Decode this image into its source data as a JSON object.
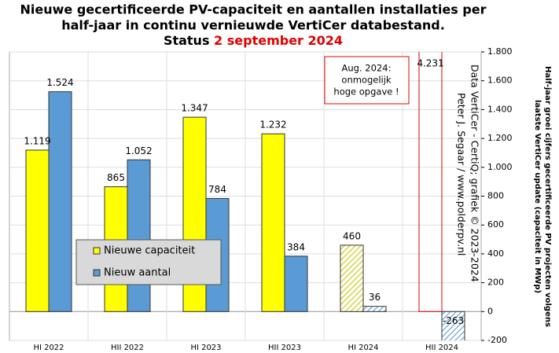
{
  "chart_data": {
    "type": "bar",
    "title": [
      "Nieuwe gecertificeerde PV-capaciteit en aantallen installaties per",
      "half-jaar in continu vernieuwde VertiCer databestand."
    ],
    "subtitle": {
      "prefix": "Status",
      "date": "2 september 2024",
      "date_color": "#e00000"
    },
    "y_axis_label": [
      "Half-jaar groei cijfers gecertificeerde PV projecten volgens",
      "laatste VertiCer update (capaciteit in MWp)"
    ],
    "credits": [
      "Data VertiCer - CertiQ; grafiek © 2023-2024",
      "Peter J. Segaar / www.polderpv.nl"
    ],
    "annotation": [
      "Aug. 2024:",
      "onmogelijk",
      "hoge opgave !"
    ],
    "categories": [
      "HI 2022",
      "HII 2022",
      "HI 2023",
      "HII 2023",
      "HI 2024",
      "HII 2024"
    ],
    "series": [
      {
        "name": "Nieuwe capaciteit",
        "color": "#ffff00",
        "values": [
          1119,
          865,
          1347,
          1232,
          460,
          4231
        ],
        "value_labels": [
          "1.119",
          "865",
          "1.347",
          "1.232",
          "460",
          "4.231"
        ],
        "pattern": [
          "solid",
          "solid",
          "solid",
          "solid",
          "hatched",
          "outline"
        ]
      },
      {
        "name": "Nieuw aantal",
        "color": "#5b9bd5",
        "values": [
          1524,
          1052,
          784,
          384,
          36,
          -263
        ],
        "value_labels": [
          "1.524",
          "1.052",
          "784",
          "384",
          "36",
          "-263"
        ],
        "pattern": [
          "solid",
          "solid",
          "solid",
          "solid",
          "hatched",
          "hatched"
        ]
      }
    ],
    "outline_color": "#e00000",
    "ylim": [
      -200,
      1800
    ],
    "yticks": [
      -200,
      0,
      200,
      400,
      600,
      800,
      {
        "value": 1000,
        "label": "1.000"
      },
      {
        "value": 1200,
        "label": "1.200"
      },
      {
        "value": 1400,
        "label": "1.400"
      },
      {
        "value": 1600,
        "label": "1.600"
      },
      {
        "value": 1800,
        "label": "1.800"
      }
    ],
    "grid": true
  }
}
